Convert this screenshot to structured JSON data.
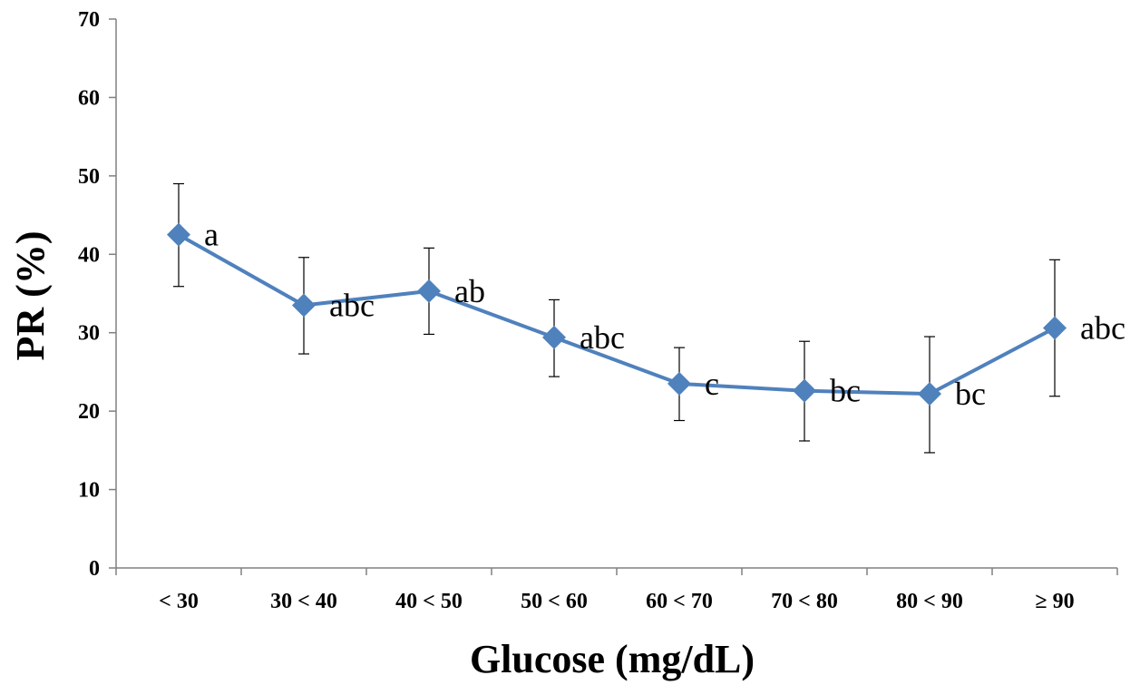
{
  "chart_data": {
    "type": "line",
    "title": "",
    "xlabel": "Glucose (mg/dL)",
    "ylabel": "PR (%)",
    "ylim": [
      0,
      70
    ],
    "yticks": [
      "0",
      "10",
      "20",
      "30",
      "40",
      "50",
      "60",
      "70"
    ],
    "categories": [
      "< 30",
      "30 < 40",
      "40 < 50",
      "50 < 60",
      "60 < 70",
      "70 < 80",
      "80 < 90",
      "≥ 90"
    ],
    "grid": false,
    "legend": "none",
    "series": [
      {
        "color": "#4F81BD",
        "marker": "diamond",
        "values": [
          42.5,
          33.5,
          35.3,
          29.4,
          23.5,
          22.6,
          22.2,
          30.6
        ],
        "error_low": [
          35.9,
          27.3,
          29.8,
          24.4,
          18.8,
          16.2,
          14.7,
          21.9
        ],
        "error_high": [
          49.0,
          39.6,
          40.8,
          34.2,
          28.1,
          28.9,
          29.5,
          39.3
        ],
        "labels": [
          "a",
          "abc",
          "ab",
          "abc",
          "c",
          "bc",
          "bc",
          "abc"
        ]
      }
    ]
  }
}
